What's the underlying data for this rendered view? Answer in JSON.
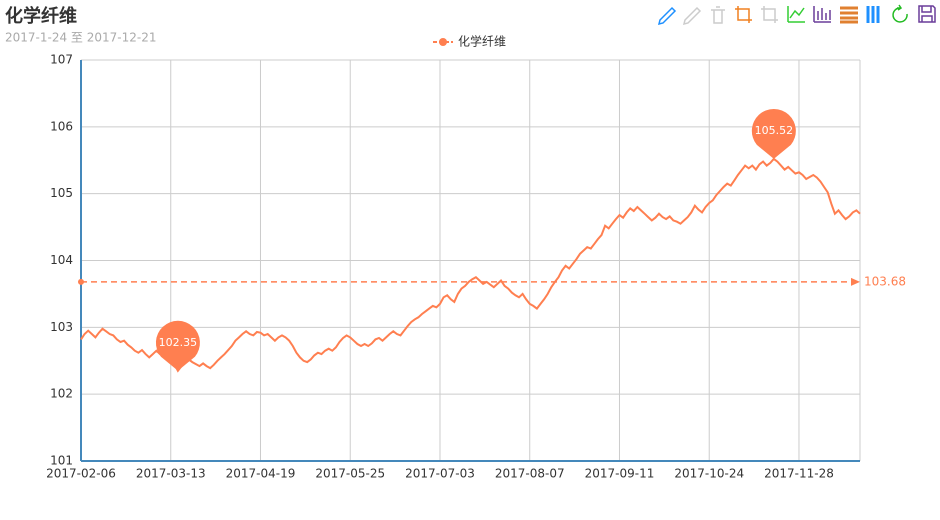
{
  "chart_data": {
    "type": "line",
    "title": "化学纤维",
    "subtitle": "2017-1-24 至 2017-12-21",
    "categories": [
      "2017-02-06",
      null,
      null,
      null,
      null,
      null,
      null,
      null,
      null,
      null,
      null,
      null,
      null,
      null,
      null,
      null,
      null,
      null,
      null,
      null,
      null,
      null,
      null,
      null,
      null,
      "2017-03-13",
      null,
      null,
      null,
      null,
      null,
      null,
      null,
      null,
      null,
      null,
      null,
      null,
      null,
      null,
      null,
      null,
      null,
      null,
      null,
      null,
      null,
      null,
      null,
      null,
      "2017-04-19",
      null,
      null,
      null,
      null,
      null,
      null,
      null,
      null,
      null,
      null,
      null,
      null,
      null,
      null,
      null,
      null,
      null,
      null,
      null,
      null,
      null,
      null,
      null,
      null,
      "2017-05-25",
      null,
      null,
      null,
      null,
      null,
      null,
      null,
      null,
      null,
      null,
      null,
      null,
      null,
      null,
      null,
      null,
      null,
      null,
      null,
      null,
      null,
      null,
      null,
      null,
      "2017-07-03",
      null,
      null,
      null,
      null,
      null,
      null,
      null,
      null,
      null,
      null,
      null,
      null,
      null,
      null,
      null,
      null,
      null,
      null,
      null,
      null,
      null,
      null,
      null,
      null,
      "2017-08-07",
      null,
      null,
      null,
      null,
      null,
      null,
      null,
      null,
      null,
      null,
      null,
      null,
      null,
      null,
      null,
      null,
      null,
      null,
      null,
      null,
      null,
      null,
      null,
      null,
      "2017-09-11",
      null,
      null,
      null,
      null,
      null,
      null,
      null,
      null,
      null,
      null,
      null,
      null,
      null,
      null,
      null,
      null,
      null,
      null,
      null,
      null,
      null,
      null,
      null,
      null,
      "2017-10-24",
      null,
      null,
      null,
      null,
      null,
      null,
      null,
      null,
      null,
      null,
      null,
      null,
      null,
      null,
      null,
      null,
      null,
      null,
      null,
      null,
      null,
      null,
      null,
      null,
      "2017-11-28",
      null,
      null,
      null,
      null,
      null,
      null,
      null,
      null,
      null,
      null,
      null,
      null,
      null,
      null,
      null,
      null,
      null
    ],
    "series": [
      {
        "name": "化学纤维",
        "color": "#ff7f50",
        "values": [
          102.82,
          102.9,
          102.95,
          102.9,
          102.85,
          102.92,
          102.98,
          102.94,
          102.9,
          102.88,
          102.82,
          102.78,
          102.8,
          102.74,
          102.7,
          102.65,
          102.62,
          102.66,
          102.6,
          102.55,
          102.6,
          102.65,
          102.6,
          102.56,
          102.52,
          102.5,
          102.45,
          102.35,
          102.42,
          102.48,
          102.52,
          102.48,
          102.45,
          102.42,
          102.46,
          102.42,
          102.39,
          102.44,
          102.5,
          102.55,
          102.6,
          102.66,
          102.72,
          102.8,
          102.85,
          102.9,
          102.94,
          102.9,
          102.88,
          102.93,
          102.92,
          102.88,
          102.9,
          102.85,
          102.8,
          102.85,
          102.88,
          102.85,
          102.8,
          102.72,
          102.62,
          102.55,
          102.5,
          102.48,
          102.52,
          102.58,
          102.62,
          102.6,
          102.65,
          102.68,
          102.65,
          102.7,
          102.78,
          102.84,
          102.88,
          102.85,
          102.8,
          102.75,
          102.72,
          102.75,
          102.72,
          102.76,
          102.82,
          102.84,
          102.8,
          102.85,
          102.9,
          102.94,
          102.9,
          102.88,
          102.95,
          103.02,
          103.08,
          103.12,
          103.15,
          103.2,
          103.24,
          103.28,
          103.32,
          103.3,
          103.35,
          103.45,
          103.48,
          103.42,
          103.38,
          103.5,
          103.58,
          103.62,
          103.68,
          103.72,
          103.75,
          103.7,
          103.65,
          103.68,
          103.64,
          103.6,
          103.65,
          103.7,
          103.62,
          103.58,
          103.52,
          103.48,
          103.45,
          103.5,
          103.42,
          103.35,
          103.32,
          103.28,
          103.35,
          103.42,
          103.5,
          103.6,
          103.68,
          103.75,
          103.85,
          103.92,
          103.88,
          103.95,
          104.02,
          104.1,
          104.15,
          104.2,
          104.18,
          104.25,
          104.32,
          104.38,
          104.52,
          104.48,
          104.55,
          104.62,
          104.68,
          104.64,
          104.72,
          104.78,
          104.74,
          104.8,
          104.75,
          104.7,
          104.65,
          104.6,
          104.64,
          104.7,
          104.65,
          104.62,
          104.66,
          104.6,
          104.58,
          104.55,
          104.6,
          104.65,
          104.72,
          104.82,
          104.76,
          104.72,
          104.8,
          104.86,
          104.9,
          104.98,
          105.04,
          105.1,
          105.15,
          105.12,
          105.2,
          105.28,
          105.35,
          105.42,
          105.38,
          105.42,
          105.36,
          105.44,
          105.48,
          105.42,
          105.46,
          105.52,
          105.48,
          105.42,
          105.36,
          105.4,
          105.35,
          105.3,
          105.32,
          105.28,
          105.22,
          105.25,
          105.28,
          105.24,
          105.18,
          105.1,
          105.02,
          104.85,
          104.7,
          104.75,
          104.68,
          104.62,
          104.66,
          104.72,
          104.75,
          104.7
        ]
      }
    ],
    "ylim": [
      101,
      107
    ],
    "yticks": [
      101,
      102,
      103,
      104,
      105,
      106,
      107
    ],
    "grid": true,
    "legend_position": "top",
    "mark_points": [
      {
        "type": "max",
        "value": 105.52
      },
      {
        "type": "min",
        "value": 102.35
      }
    ],
    "mark_line": {
      "type": "average",
      "value": 103.68
    }
  }
}
